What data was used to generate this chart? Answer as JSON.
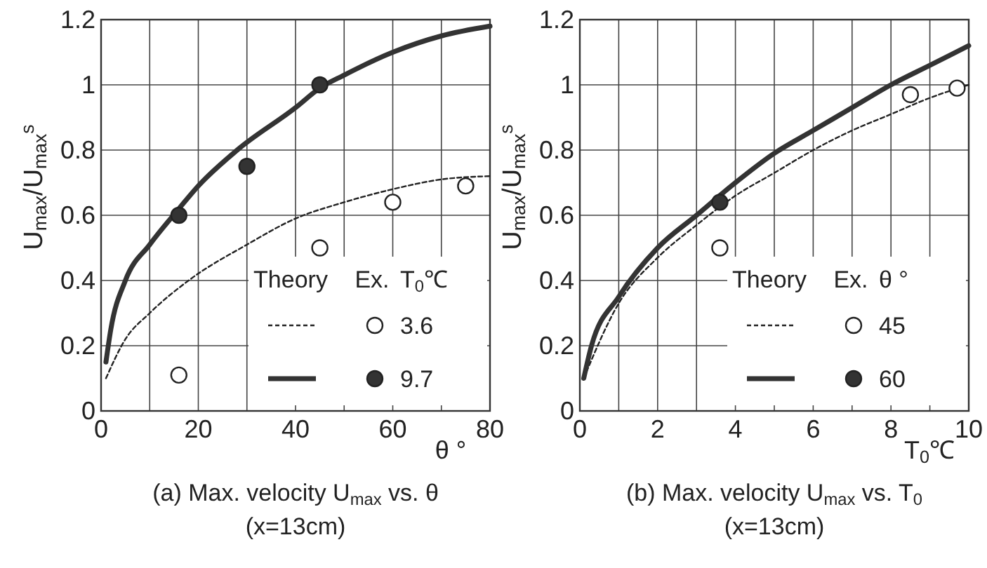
{
  "chart_data": [
    {
      "type": "line",
      "title": "(a) Max. velocity U$_{max}$  vs. θ",
      "subtitle": "(x=13cm)",
      "xlabel": "θ °",
      "ylabel": "U$_{max}$/U$_{max}$$^{s}$",
      "xlim": [
        0,
        80
      ],
      "ylim": [
        0,
        1.2
      ],
      "xticks": [
        0,
        {
          "value": 10,
          "label": null
        },
        20,
        {
          "value": 30,
          "label": null
        },
        40,
        {
          "value": 50,
          "label": null
        },
        60,
        {
          "value": 70,
          "label": null
        },
        80
      ],
      "yticks": [
        0,
        0.2,
        0.4,
        0.6,
        0.8,
        1,
        1.2
      ],
      "grid": true,
      "legend": "bottom right",
      "legend_title": "T$_{0}$℃",
      "annotations": [
        "Theory",
        "Ex."
      ],
      "series": [
        {
          "type": "line",
          "line_style": "dashed",
          "marker": "none",
          "color": "#222222",
          "x": [
            1,
            5,
            10,
            18,
            30,
            40,
            50,
            60,
            70,
            80
          ],
          "values": [
            0.1,
            0.22,
            0.3,
            0.4,
            0.51,
            0.59,
            0.64,
            0.68,
            0.71,
            0.72
          ]
        },
        {
          "name": "3.6",
          "type": "scatter",
          "marker": "circle",
          "color": "#ffffff",
          "x": [
            16,
            45,
            60,
            75
          ],
          "values": [
            0.11,
            0.5,
            0.64,
            0.69
          ]
        },
        {
          "type": "line",
          "line_style": "solid",
          "marker": "none",
          "color": "#333333",
          "x": [
            1,
            2,
            5,
            10,
            16,
            20,
            28,
            40,
            45,
            50,
            60,
            70,
            80
          ],
          "values": [
            0.15,
            0.25,
            0.4,
            0.51,
            0.62,
            0.69,
            0.8,
            0.93,
            0.99,
            1.03,
            1.1,
            1.15,
            1.18
          ]
        },
        {
          "name": "9.7",
          "type": "scatter",
          "marker": "circle",
          "color": "#333333",
          "x": [
            16,
            30,
            45
          ],
          "values": [
            0.6,
            0.75,
            1.0
          ]
        }
      ]
    },
    {
      "type": "line",
      "title": "(b) Max. velocity U$_{max}$  vs. T$_{0}$",
      "subtitle": "(x=13cm)",
      "xlabel": "T$_{0}$℃",
      "ylabel": "U$_{max}$/U$_{max}$$^{s}$",
      "xlim": [
        0,
        10
      ],
      "ylim": [
        0,
        1.2
      ],
      "xticks": [
        0,
        {
          "value": 1,
          "label": null
        },
        2,
        {
          "value": 3,
          "label": null
        },
        4,
        {
          "value": 5,
          "label": null
        },
        6,
        {
          "value": 7,
          "label": null
        },
        8,
        {
          "value": 9,
          "label": null
        },
        10
      ],
      "yticks": [
        0,
        0.2,
        0.4,
        0.6,
        0.8,
        1,
        1.2
      ],
      "grid": true,
      "legend": "bottom right",
      "legend_title": "θ °",
      "annotations": [
        "Theory",
        "Ex."
      ],
      "series": [
        {
          "type": "line",
          "line_style": "dashed",
          "marker": "none",
          "color": "#222222",
          "x": [
            0.1,
            1,
            2,
            3,
            4,
            5,
            6,
            7,
            8,
            9,
            10
          ],
          "values": [
            0.1,
            0.33,
            0.47,
            0.57,
            0.66,
            0.73,
            0.8,
            0.86,
            0.91,
            0.96,
            1.0
          ]
        },
        {
          "name": "45",
          "type": "scatter",
          "marker": "circle",
          "color": "#ffffff",
          "x": [
            3.6,
            8.5,
            9.7
          ],
          "values": [
            0.5,
            0.97,
            0.99
          ]
        },
        {
          "type": "line",
          "line_style": "solid",
          "marker": "none",
          "color": "#333333",
          "x": [
            0.1,
            0.3,
            1,
            2,
            3,
            4,
            5,
            6,
            7,
            8,
            9,
            10
          ],
          "values": [
            0.1,
            0.2,
            0.35,
            0.5,
            0.6,
            0.7,
            0.79,
            0.86,
            0.93,
            1.0,
            1.06,
            1.12
          ]
        },
        {
          "name": "60",
          "type": "scatter",
          "marker": "circle",
          "color": "#333333",
          "x": [
            3.6
          ],
          "values": [
            0.64
          ]
        }
      ]
    }
  ]
}
